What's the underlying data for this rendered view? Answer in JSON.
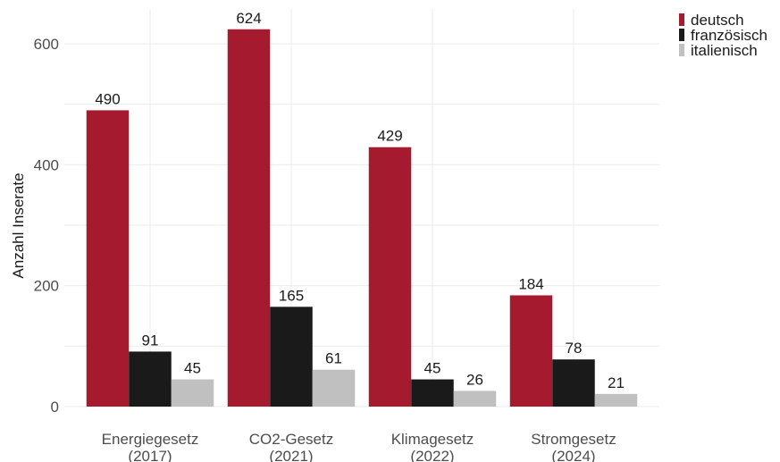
{
  "chart_data": {
    "type": "bar",
    "ylabel": "Anzahl Inserate",
    "xlabel": "",
    "ylim": [
      0,
      650
    ],
    "yticks": [
      0,
      200,
      400,
      600
    ],
    "grid": true,
    "legend_position": "top-right",
    "categories": [
      [
        "Energiegesetz",
        "(2017)"
      ],
      [
        "CO2-Gesetz",
        "(2021)"
      ],
      [
        "Klimagesetz",
        "(2022)"
      ],
      [
        "Stromgesetz",
        "(2024)"
      ]
    ],
    "series": [
      {
        "name": "deutsch",
        "color": "#a51a2e",
        "values": [
          490,
          624,
          429,
          184
        ]
      },
      {
        "name": "französisch",
        "color": "#1a1a1a",
        "values": [
          91,
          165,
          45,
          78
        ]
      },
      {
        "name": "italienisch",
        "color": "#c0c0c0",
        "values": [
          45,
          61,
          26,
          21
        ]
      }
    ]
  }
}
